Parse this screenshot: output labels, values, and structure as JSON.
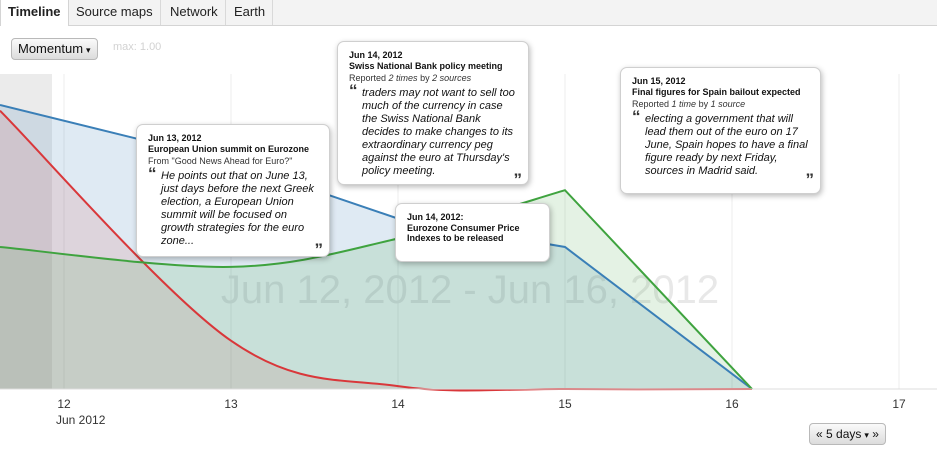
{
  "tabs": [
    {
      "label": "Timeline"
    },
    {
      "label": "Source maps"
    },
    {
      "label": "Network"
    },
    {
      "label": "Earth"
    }
  ],
  "controls": {
    "mode_label": "Momentum",
    "max_label": "max: 1.00",
    "range_label": "« 5 days",
    "range_suffix": "»"
  },
  "timeline": {
    "watermark": "Jun 12, 2012 - Jun 16, 2012",
    "month_label": "Jun 2012"
  },
  "chart_data": {
    "type": "area",
    "x_ticks": [
      "12",
      "13",
      "14",
      "15",
      "16",
      "17"
    ],
    "x": [
      "2012-06-12",
      "2012-06-13",
      "2012-06-14",
      "2012-06-15",
      "2012-06-16"
    ],
    "ylim": [
      0,
      1
    ],
    "series": [
      {
        "values": [
          1.0,
          0.8,
          0.6,
          0.5,
          0.0
        ],
        "color": "#3a7fb7"
      },
      {
        "values": [
          0.98,
          0.17,
          0.01,
          0.0,
          0.0
        ],
        "color": "#d9373a"
      },
      {
        "values": [
          0.5,
          0.43,
          0.53,
          0.7,
          0.0
        ],
        "color": "#3fa33f"
      }
    ]
  },
  "events": [
    {
      "date": "Jun 13, 2012",
      "headline": "European Union summit on Eurozone",
      "source_prefix": "From \"Good News Ahead for Euro?\"",
      "quote": "He points out that on June 13, just days before the next Greek election, a European Union summit will be focused on growth strategies for the euro zone..."
    },
    {
      "date": "Jun 14, 2012",
      "headline": "Swiss National Bank policy meeting",
      "reported": "Reported",
      "count": "2 times",
      "by": "by",
      "sources": "2 sources",
      "quote": "traders may not want to sell too much of the currency in case the Swiss National Bank decides to make changes to its extraordinary currency peg against the euro at Thursday's policy meeting."
    },
    {
      "date": "Jun 14, 2012:",
      "headline": "Eurozone Consumer Price Indexes to be released"
    },
    {
      "date": "Jun 15, 2012",
      "headline": "Final figures for Spain bailout expected",
      "reported": "Reported",
      "count": "1 time",
      "by": "by",
      "sources": "1 source",
      "quote": "electing a government that will lead them out of the euro on 17 June, Spain hopes to have a final figure ready by next Friday, sources in Madrid said."
    }
  ],
  "quote_marks": {
    "open": "“",
    "close": "”"
  },
  "colors": {
    "blue": "#3a7fb7",
    "red": "#d9373a",
    "green": "#3fa33f"
  }
}
